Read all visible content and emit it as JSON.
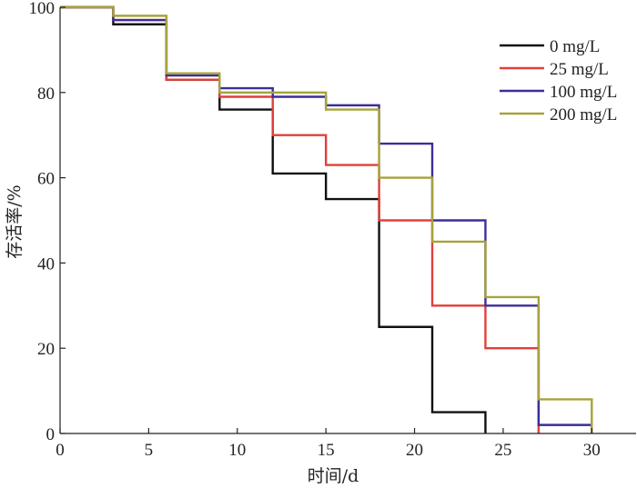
{
  "chart_data": {
    "type": "line",
    "xlabel": "时间/d",
    "ylabel": "存活率/%",
    "xlim": [
      0,
      32.5
    ],
    "ylim": [
      0,
      100
    ],
    "x_ticks": [
      "0",
      "5",
      "10",
      "15",
      "20",
      "25",
      "30"
    ],
    "y_ticks": [
      "0",
      "20",
      "40",
      "60",
      "80",
      "100"
    ],
    "grid": false,
    "legend_position": "top-right",
    "step": true,
    "series": [
      {
        "name": "0 mg/L",
        "color": "#111111",
        "x": [
          0,
          3,
          6,
          9,
          12,
          15,
          18,
          21,
          24
        ],
        "y": [
          100,
          96,
          83,
          76,
          61,
          55,
          25,
          5,
          0
        ]
      },
      {
        "name": "25 mg/L",
        "color": "#e0403a",
        "x": [
          0,
          3,
          6,
          9,
          12,
          15,
          18,
          21,
          24,
          27
        ],
        "y": [
          100,
          97,
          83,
          79,
          70,
          63,
          50,
          30,
          20,
          0
        ]
      },
      {
        "name": "100 mg/L",
        "color": "#3a2f9a",
        "x": [
          0,
          3,
          6,
          9,
          12,
          15,
          18,
          21,
          24,
          27,
          30
        ],
        "y": [
          100,
          97,
          84,
          81,
          79,
          77,
          68,
          50,
          30,
          2,
          0
        ]
      },
      {
        "name": "200 mg/L",
        "color": "#a6a33a",
        "x": [
          0,
          3,
          6,
          9,
          12,
          15,
          18,
          21,
          24,
          27,
          30
        ],
        "y": [
          100,
          98,
          84.5,
          80,
          80,
          76,
          60,
          45,
          32,
          8,
          0
        ]
      }
    ]
  }
}
